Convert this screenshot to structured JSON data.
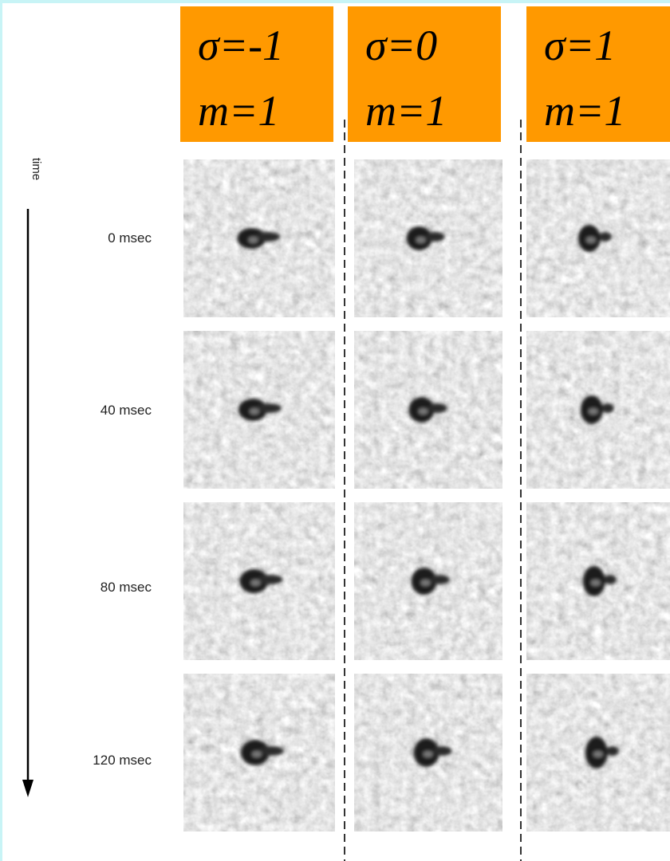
{
  "columns": [
    {
      "sigma": "σ=-1",
      "m": "m=1"
    },
    {
      "sigma": "σ=0",
      "m": "m=1"
    },
    {
      "sigma": "σ=1",
      "m": "m=1"
    }
  ],
  "axis_label": "time",
  "rows": [
    "0 msec",
    "40 msec",
    "80 msec",
    "120 msec"
  ]
}
